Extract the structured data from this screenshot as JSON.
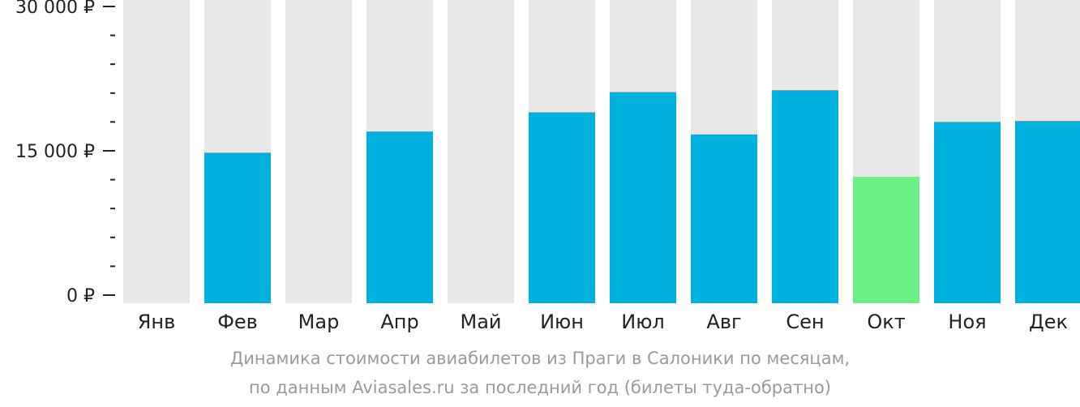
{
  "chart_data": {
    "type": "bar",
    "categories": [
      "Янв",
      "Фев",
      "Мар",
      "Апр",
      "Май",
      "Июн",
      "Июл",
      "Авг",
      "Сен",
      "Окт",
      "Ноя",
      "Дек"
    ],
    "values": [
      null,
      14800,
      null,
      17000,
      null,
      19000,
      21100,
      16700,
      21300,
      12300,
      18000,
      18100
    ],
    "ylim": [
      0,
      30000
    ],
    "yticks": [
      {
        "value": 30000,
        "label": "30 000 ₽"
      },
      {
        "value": 15000,
        "label": "15 000 ₽"
      },
      {
        "value": 0,
        "label": "0 ₽"
      }
    ],
    "minor_ytick_step": 3000,
    "highlight_category": "Окт",
    "colors": {
      "bar": "#00b1dd",
      "highlight": "#6cf085",
      "background_column": "#e8e8e8",
      "axis": "#222222"
    }
  },
  "caption": {
    "line1": "Динамика стоимости авиабилетов из Праги в Салоники по месяцам,",
    "line2": "по данным Aviasales.ru за последний год (билеты туда-обратно)"
  }
}
